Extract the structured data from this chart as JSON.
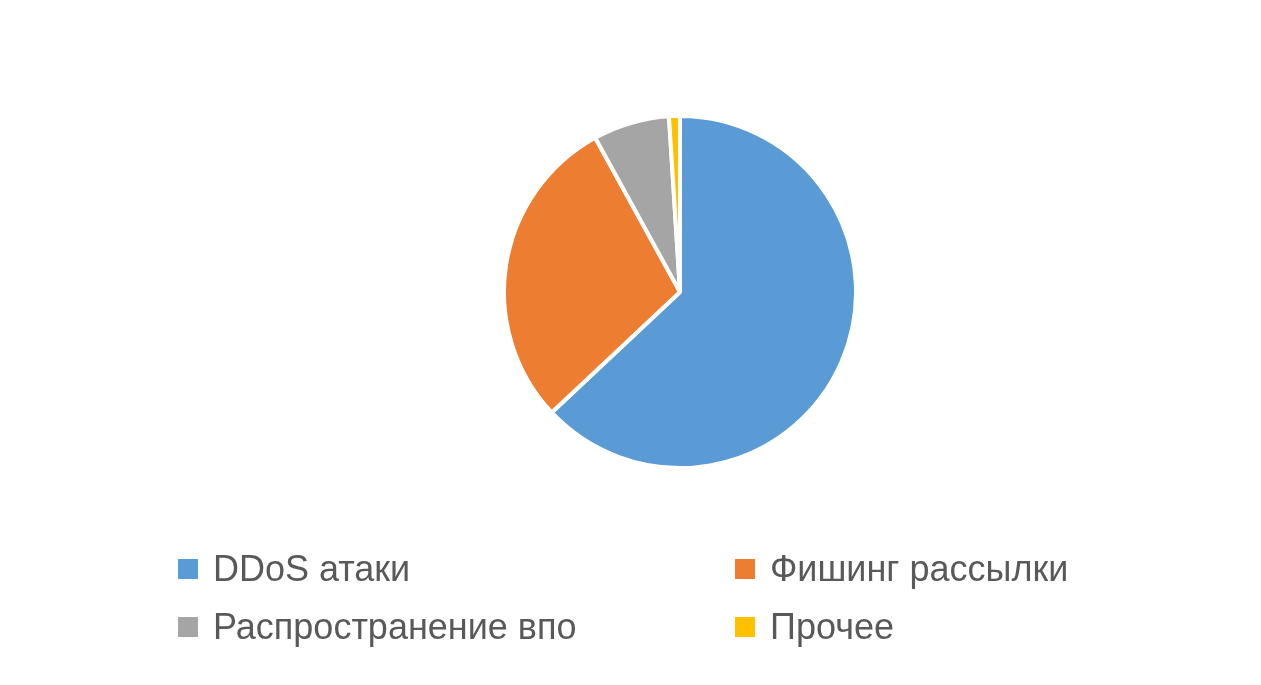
{
  "chart_data": {
    "type": "pie",
    "categories": [
      "DDoS атаки",
      "Фишинг рассылки",
      "Распространение впо",
      "Прочее"
    ],
    "values": [
      63,
      29,
      7,
      1
    ],
    "colors": [
      "#5b9bd5",
      "#ed7d31",
      "#a5a5a5",
      "#ffc000"
    ],
    "legend": "bottom"
  }
}
